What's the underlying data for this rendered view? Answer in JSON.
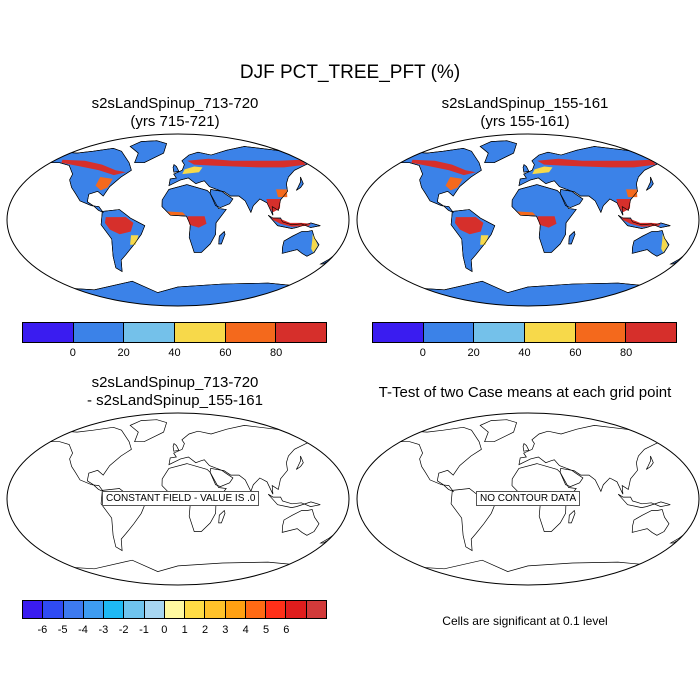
{
  "title": "DJF PCT_TREE_PFT (%)",
  "panels": [
    {
      "id": "case1",
      "title_line1": "s2sLandSpinup_713-720",
      "title_line2": "(yrs 715-721)"
    },
    {
      "id": "case2",
      "title_line1": "s2sLandSpinup_155-161",
      "title_line2": "(yrs 155-161)"
    },
    {
      "id": "diff",
      "title_line1": "s2sLandSpinup_713-720",
      "title_line2": "- s2sLandSpinup_155-161",
      "map_label": "CONSTANT FIELD - VALUE IS .0"
    },
    {
      "id": "ttest",
      "title_line1": "T-Test of two Case means at each grid point",
      "map_label": "NO CONTOUR DATA"
    }
  ],
  "colorbar_abs": {
    "colors": [
      "#3a1cf0",
      "#3b82e8",
      "#74c1ea",
      "#f7d94a",
      "#f4691c",
      "#d62f2b"
    ],
    "labels": [
      "0",
      "20",
      "40",
      "60",
      "80"
    ]
  },
  "colorbar_diff": {
    "colors": [
      "#3a1cf0",
      "#2f4bf3",
      "#3d7af0",
      "#3e9cf1",
      "#1eb9f4",
      "#6fc4ee",
      "#a7d6f2",
      "#fff9a0",
      "#ffdc45",
      "#ffc22a",
      "#ffa012",
      "#ff6a14",
      "#ff3019",
      "#e01d1d",
      "#d23a3a"
    ],
    "labels": [
      "-6",
      "-5",
      "-4",
      "-3",
      "-2",
      "-1",
      "0",
      "1",
      "2",
      "3",
      "4",
      "5",
      "6"
    ]
  },
  "significance_note": "Cells are significant at 0.1 level",
  "map_colors": {
    "ocean": "#ffffff",
    "land_low": "#3b82e8",
    "forest_high": "#d62f2b",
    "forest_mid": "#f4691c",
    "forest_light": "#f7d94a",
    "ice": "#3b82e8"
  }
}
